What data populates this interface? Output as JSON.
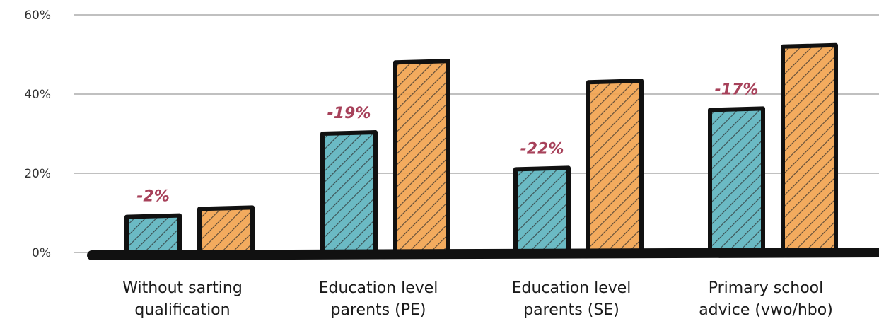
{
  "chart_data": {
    "type": "bar",
    "title": "",
    "xlabel": "",
    "ylabel": "",
    "ylim": [
      0,
      60
    ],
    "yticks": [
      {
        "value": 0,
        "label": "0%"
      },
      {
        "value": 20,
        "label": "20%"
      },
      {
        "value": 40,
        "label": "40%"
      },
      {
        "value": 60,
        "label": "60%"
      }
    ],
    "grid": true,
    "legend": "none",
    "categories": [
      [
        "Without sarting",
        "qualification"
      ],
      [
        "Education level",
        "parents (PE)"
      ],
      [
        "Education level",
        "parents (SE)"
      ],
      [
        "Primary school",
        "advice (vwo/hbo)"
      ]
    ],
    "series": [
      {
        "color": "#5bb3be",
        "values": [
          9,
          30,
          21,
          36
        ]
      },
      {
        "color": "#f2a24c",
        "values": [
          11,
          48,
          43,
          52
        ]
      }
    ],
    "annotations": [
      "-2%",
      "-19%",
      "-22%",
      "-17%"
    ],
    "colors": {
      "grid": "#9a9a9a",
      "outline": "#111111",
      "annotation": "#a7415a"
    }
  }
}
